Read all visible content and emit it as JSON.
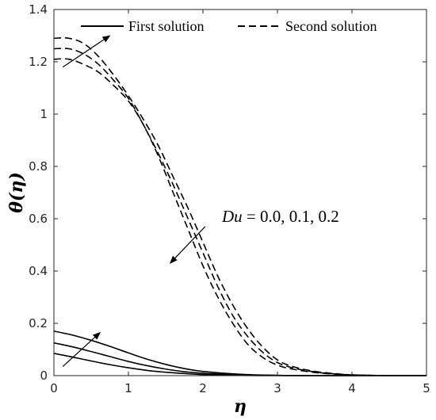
{
  "chart_data": {
    "type": "line",
    "xlabel": "η",
    "ylabel": "θ(η)",
    "xlim": [
      0,
      5
    ],
    "ylim": [
      0,
      1.4
    ],
    "xticks": [
      "0",
      "1",
      "2",
      "3",
      "4",
      "5"
    ],
    "yticks": [
      "0",
      "0.2",
      "0.4",
      "0.6",
      "0.8",
      "1",
      "1.2",
      "1.4"
    ],
    "legend_position": "top",
    "legend": [
      {
        "label": "First solution",
        "style": "solid"
      },
      {
        "label": "Second solution",
        "style": "dashed"
      }
    ],
    "annotation": {
      "variable": "Du",
      "text": " = 0.0, 0.1, 0.2"
    },
    "series": [
      {
        "group": "First solution",
        "style": "solid",
        "x": [
          0,
          0.25,
          0.5,
          0.75,
          1.0,
          1.25,
          1.5,
          1.75,
          2.0,
          2.5,
          3.0,
          3.5,
          4.0,
          5.0
        ],
        "y": [
          0.085,
          0.071,
          0.056,
          0.042,
          0.03,
          0.02,
          0.013,
          0.008,
          0.004,
          0.001,
          0.0,
          0.0,
          0.0,
          0.0
        ]
      },
      {
        "group": "First solution",
        "style": "solid",
        "x": [
          0,
          0.25,
          0.5,
          0.75,
          1.0,
          1.25,
          1.5,
          1.75,
          2.0,
          2.5,
          3.0,
          3.5,
          4.0,
          5.0
        ],
        "y": [
          0.125,
          0.11,
          0.092,
          0.073,
          0.054,
          0.038,
          0.025,
          0.015,
          0.009,
          0.003,
          0.001,
          0.0,
          0.0,
          0.0
        ]
      },
      {
        "group": "First solution",
        "style": "solid",
        "x": [
          0,
          0.25,
          0.5,
          0.75,
          1.0,
          1.25,
          1.5,
          1.75,
          2.0,
          2.5,
          3.0,
          3.5,
          4.0,
          5.0
        ],
        "y": [
          0.17,
          0.155,
          0.135,
          0.112,
          0.087,
          0.063,
          0.043,
          0.027,
          0.016,
          0.005,
          0.001,
          0.0,
          0.0,
          0.0
        ]
      },
      {
        "group": "Second solution",
        "style": "dashed",
        "x": [
          0,
          0.2,
          0.4,
          0.6,
          0.8,
          1.0,
          1.2,
          1.4,
          1.6,
          1.8,
          2.0,
          2.2,
          2.4,
          2.6,
          2.8,
          3.0,
          3.2,
          3.5,
          3.8,
          4.0,
          4.5,
          5.0
        ],
        "y": [
          1.21,
          1.21,
          1.19,
          1.16,
          1.11,
          1.05,
          0.96,
          0.84,
          0.7,
          0.56,
          0.42,
          0.3,
          0.2,
          0.12,
          0.07,
          0.04,
          0.025,
          0.012,
          0.005,
          0.002,
          0.0,
          0.0
        ]
      },
      {
        "group": "Second solution",
        "style": "dashed",
        "x": [
          0,
          0.2,
          0.4,
          0.6,
          0.8,
          1.0,
          1.2,
          1.4,
          1.6,
          1.8,
          2.0,
          2.2,
          2.4,
          2.6,
          2.8,
          3.0,
          3.2,
          3.5,
          3.8,
          4.0,
          4.5,
          5.0
        ],
        "y": [
          1.25,
          1.25,
          1.23,
          1.19,
          1.13,
          1.06,
          0.96,
          0.85,
          0.73,
          0.6,
          0.47,
          0.34,
          0.23,
          0.15,
          0.09,
          0.05,
          0.03,
          0.014,
          0.006,
          0.003,
          0.0,
          0.0
        ]
      },
      {
        "group": "Second solution",
        "style": "dashed",
        "x": [
          0,
          0.2,
          0.4,
          0.6,
          0.8,
          1.0,
          1.2,
          1.4,
          1.6,
          1.8,
          2.0,
          2.2,
          2.4,
          2.6,
          2.8,
          3.0,
          3.2,
          3.5,
          3.8,
          4.0,
          4.5,
          5.0
        ],
        "y": [
          1.29,
          1.29,
          1.27,
          1.22,
          1.15,
          1.07,
          0.98,
          0.88,
          0.76,
          0.64,
          0.51,
          0.38,
          0.27,
          0.18,
          0.11,
          0.06,
          0.035,
          0.016,
          0.007,
          0.003,
          0.0,
          0.0
        ]
      }
    ]
  }
}
